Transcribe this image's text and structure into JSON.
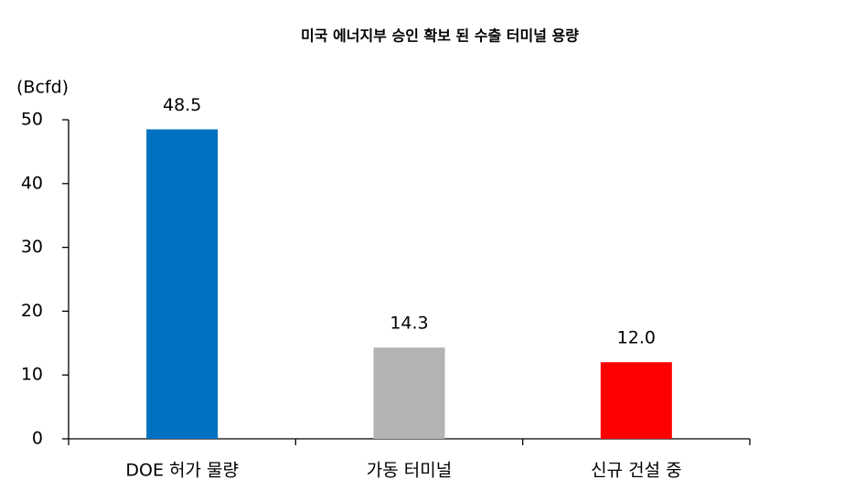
{
  "chart_data": {
    "type": "bar",
    "title": "미국 에너지부 승인 확보 된 수출 터미널 용량",
    "y_label": "(Bcfd)",
    "categories": [
      "DOE 허가 물량",
      "가동 터미널",
      "신규 건설 중"
    ],
    "values": [
      48.5,
      14.3,
      12.0
    ],
    "value_labels": [
      "48.5",
      "14.3",
      "12.0"
    ],
    "colors": [
      "#0070c0",
      "#b3b3b3",
      "#ff0000"
    ],
    "ylim": [
      0,
      50
    ],
    "yticks": [
      0,
      10,
      20,
      30,
      40,
      50
    ],
    "grid": false
  }
}
